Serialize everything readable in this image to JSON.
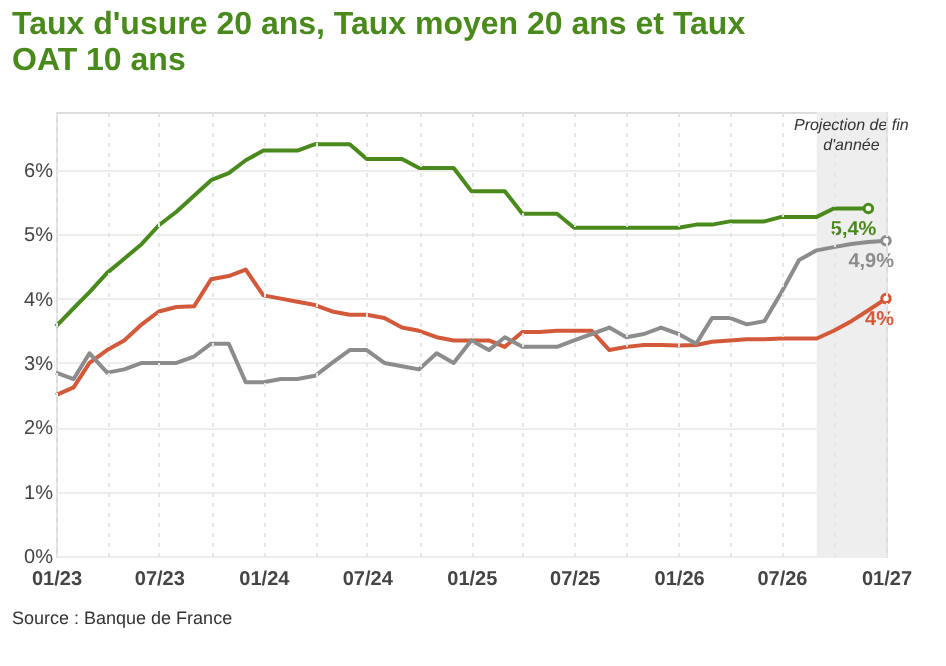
{
  "chart_data": {
    "type": "line",
    "title": "Taux d'usure 20 ans, Taux moyen 20 ans et Taux OAT 10 ans",
    "x": [
      "2023-01",
      "2023-02",
      "2023-03",
      "2023-04",
      "2023-05",
      "2023-06",
      "2023-07",
      "2023-08",
      "2023-09",
      "2023-10",
      "2023-11",
      "2023-12",
      "2024-01",
      "2024-02",
      "2024-03",
      "2024-04",
      "2024-05",
      "2024-06",
      "2024-07",
      "2024-08",
      "2024-09",
      "2024-10",
      "2024-11",
      "2024-12",
      "2025-01",
      "2025-02",
      "2025-03",
      "2025-04",
      "2025-05",
      "2025-06",
      "2025-07",
      "2025-08",
      "2025-09",
      "2025-10",
      "2025-11",
      "2025-12",
      "2026-01",
      "2026-02",
      "2026-03",
      "2026-04",
      "2026-05",
      "2026-06",
      "2026-07",
      "2026-08",
      "2026-09",
      "2026-10",
      "2026-11",
      "2026-12",
      "2027-01"
    ],
    "series": [
      {
        "color": "#4a8a1c",
        "values": [
          3.57,
          3.85,
          4.1,
          4.4,
          4.62,
          4.85,
          5.14,
          5.35,
          5.6,
          5.84,
          5.95,
          6.15,
          6.3,
          6.3,
          6.3,
          6.4,
          6.4,
          6.4,
          6.17,
          6.17,
          6.17,
          6.03,
          6.03,
          6.03,
          5.67,
          5.67,
          5.67,
          5.32,
          5.32,
          5.32,
          5.1,
          5.1,
          5.1,
          5.1,
          5.1,
          5.1,
          5.1,
          5.15,
          5.15,
          5.2,
          5.2,
          5.2,
          5.27,
          5.27,
          5.27,
          5.4,
          5.4,
          5.4,
          null
        ],
        "value_labels": [
          null,
          null,
          null,
          null,
          null,
          null,
          null,
          null,
          null,
          null,
          null,
          null,
          null,
          null,
          null,
          null,
          null,
          null,
          null,
          null,
          null,
          null,
          null,
          null,
          null,
          null,
          null,
          null,
          null,
          null,
          null,
          null,
          null,
          null,
          null,
          null,
          null,
          null,
          null,
          null,
          null,
          null,
          null,
          null,
          null,
          null,
          null,
          "5,4%",
          null
        ]
      },
      {
        "color": "#d2593a",
        "values": [
          2.5,
          2.62,
          3.0,
          3.2,
          3.35,
          3.6,
          3.8,
          3.87,
          3.88,
          4.3,
          4.35,
          4.45,
          4.05,
          4.0,
          3.95,
          3.9,
          3.8,
          3.75,
          3.75,
          3.7,
          3.55,
          3.5,
          3.4,
          3.35,
          3.35,
          3.35,
          3.25,
          3.48,
          3.48,
          3.5,
          3.5,
          3.5,
          3.2,
          3.25,
          3.28,
          3.28,
          3.27,
          3.28,
          3.33,
          3.35,
          3.37,
          3.37,
          3.38,
          3.38,
          3.38,
          3.5,
          3.65,
          3.82,
          4.0
        ],
        "value_labels": [
          null,
          null,
          null,
          null,
          null,
          null,
          null,
          null,
          null,
          null,
          null,
          null,
          null,
          null,
          null,
          null,
          null,
          null,
          null,
          null,
          null,
          null,
          null,
          null,
          null,
          null,
          null,
          null,
          null,
          null,
          null,
          null,
          null,
          null,
          null,
          null,
          null,
          null,
          null,
          null,
          null,
          null,
          null,
          null,
          null,
          null,
          null,
          null,
          "4%"
        ]
      },
      {
        "color": "#8c8c8c",
        "values": [
          2.85,
          2.75,
          3.15,
          2.85,
          2.9,
          3.0,
          3.0,
          3.0,
          3.1,
          3.3,
          3.3,
          2.7,
          2.7,
          2.75,
          2.75,
          2.8,
          3.0,
          3.2,
          3.2,
          3.0,
          2.95,
          2.9,
          3.15,
          3.0,
          3.35,
          3.2,
          3.4,
          3.25,
          3.25,
          3.25,
          3.35,
          3.45,
          3.55,
          3.4,
          3.45,
          3.55,
          3.45,
          3.3,
          3.7,
          3.7,
          3.6,
          3.65,
          4.1,
          4.6,
          4.75,
          4.8,
          4.85,
          4.88,
          4.9
        ],
        "value_labels": [
          null,
          null,
          null,
          null,
          null,
          null,
          null,
          null,
          null,
          null,
          null,
          null,
          null,
          null,
          null,
          null,
          null,
          null,
          null,
          null,
          null,
          null,
          null,
          null,
          null,
          null,
          null,
          null,
          null,
          null,
          null,
          null,
          null,
          null,
          null,
          null,
          null,
          null,
          null,
          null,
          null,
          null,
          null,
          null,
          null,
          null,
          null,
          null,
          "4,9%"
        ]
      }
    ],
    "xlim": [
      "2023-01",
      "2027-01"
    ],
    "xticks": [
      {
        "value": "2023-01",
        "label": "01/23"
      },
      {
        "value": "2023-04",
        "label": null
      },
      {
        "value": "2023-07",
        "label": "07/23"
      },
      {
        "value": "2023-10",
        "label": null
      },
      {
        "value": "2024-01",
        "label": "01/24"
      },
      {
        "value": "2024-04",
        "label": null
      },
      {
        "value": "2024-07",
        "label": "07/24"
      },
      {
        "value": "2024-10",
        "label": null
      },
      {
        "value": "2025-01",
        "label": "01/25"
      },
      {
        "value": "2025-04",
        "label": null
      },
      {
        "value": "2025-07",
        "label": "07/25"
      },
      {
        "value": "2025-10",
        "label": null
      },
      {
        "value": "2026-01",
        "label": "01/26"
      },
      {
        "value": "2026-04",
        "label": null
      },
      {
        "value": "2026-07",
        "label": "07/26"
      },
      {
        "value": "2026-10",
        "label": null
      },
      {
        "value": "2027-01",
        "label": "01/27"
      }
    ],
    "ylim": [
      0,
      6.9
    ],
    "yticks": [
      {
        "value": 0,
        "label": "0%"
      },
      {
        "value": 1,
        "label": "1%"
      },
      {
        "value": 2,
        "label": "2%"
      },
      {
        "value": 3,
        "label": "3%"
      },
      {
        "value": 4,
        "label": "4%"
      },
      {
        "value": 5,
        "label": "5%"
      },
      {
        "value": 6,
        "label": "6%"
      }
    ],
    "bands": [
      {
        "axis": "x",
        "from": "2026-09",
        "to": "2027-01",
        "label": "Projection de fin\nd'année",
        "color": "#eeeeee"
      }
    ],
    "grid": true,
    "annotations": [
      "Source : Banque de France"
    ]
  }
}
